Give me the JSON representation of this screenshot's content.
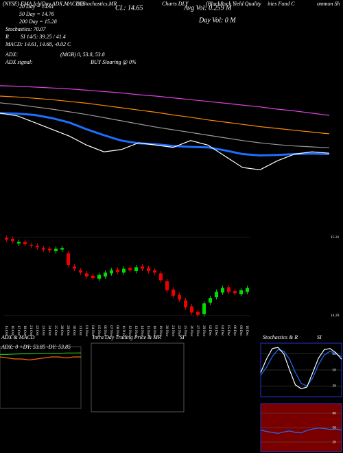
{
  "chart_data": [
    {
      "type": "line",
      "annotations": [
        "(NYSE) EMA,IchiDay,ADX,MACD,B",
        "SI,Stochastics,MR",
        "CL: 14.65",
        "Charts DLY",
        "(BlackRock Yield Quality",
        "Avg Vol: 0.259 M",
        "Day Vol: 0   M",
        "ities Fund C",
        "ommon Sh",
        "20 Day = 14.61",
        "50 Day = 14.76",
        "200 Day = 15.28",
        "Stochastics: 70.07",
        "R",
        "SI 14/5: 39.25 / 41.4",
        "MACD: 14.61, 14.68, -0.02  C",
        "ADX:",
        "(MGB) 0, 53.8, 53.8",
        "ADX signal:",
        "BUY Sloaring @ 0%"
      ],
      "categories": [
        null,
        null,
        null,
        null,
        null,
        null,
        null,
        null,
        null,
        null,
        null,
        null,
        null,
        null,
        null,
        null,
        null,
        null,
        null,
        null
      ],
      "ylim": [
        13.9,
        16.8
      ],
      "series": [
        {
          "color": "#e040e0",
          "values": [
            16.42,
            16.41,
            16.39,
            16.37,
            16.35,
            16.32,
            16.29,
            16.26,
            16.22,
            16.19,
            16.15,
            16.11,
            16.07,
            16.03,
            15.99,
            15.95,
            15.9,
            15.86,
            15.81,
            15.76
          ]
        },
        {
          "color": "#ff8c00",
          "values": [
            16.19,
            16.17,
            16.14,
            16.11,
            16.07,
            16.03,
            15.98,
            15.93,
            15.88,
            15.83,
            15.77,
            15.72,
            15.66,
            15.61,
            15.56,
            15.51,
            15.47,
            15.43,
            15.39,
            15.35
          ]
        },
        {
          "color": "#9a9a9a",
          "values": [
            16.04,
            16.0,
            15.95,
            15.9,
            15.84,
            15.78,
            15.71,
            15.64,
            15.57,
            15.5,
            15.44,
            15.38,
            15.32,
            15.26,
            15.2,
            15.15,
            15.11,
            15.08,
            15.06,
            15.04
          ]
        },
        {
          "color": "#1e6fff",
          "values": [
            15.81,
            15.8,
            15.77,
            15.7,
            15.6,
            15.45,
            15.32,
            15.2,
            15.14,
            15.12,
            15.08,
            15.06,
            15.05,
            14.98,
            14.9,
            14.87,
            14.88,
            14.9,
            14.91,
            14.9
          ]
        },
        {
          "color": "#ffffff",
          "values": [
            15.81,
            15.75,
            15.6,
            15.45,
            15.3,
            15.1,
            14.95,
            15.0,
            15.15,
            15.1,
            15.05,
            15.2,
            15.1,
            14.85,
            14.6,
            14.55,
            14.75,
            14.9,
            14.95,
            14.92
          ]
        }
      ]
    },
    {
      "type": "candlestick",
      "categories": [
        "15 Oct",
        "16 Oct",
        "17 Oct",
        "18 Oct",
        "21 Oct",
        "22 Oct",
        "23 Oct",
        "24 Oct",
        "25 Oct",
        "28 Oct",
        "29 Oct",
        "30 Oct",
        "31 Oct",
        "01 Nov",
        "04 Nov",
        "05 Nov",
        "06 Nov",
        "07 Nov",
        "08 Nov",
        "11 Nov",
        "12 Nov",
        "13 Nov",
        "14 Nov",
        "15 Nov",
        "18 Nov",
        "19 Nov",
        "20 Nov",
        "21 Nov",
        "22 Nov",
        "25 Nov",
        "26 Nov",
        "27 Nov",
        "29 Nov",
        "02 Dec",
        "03 Dec",
        "04 Dec",
        "05 Dec",
        "06 Dec",
        "09 Dec",
        "10 Dec"
      ],
      "open": [
        15.3,
        15.29,
        15.23,
        15.25,
        15.21,
        15.2,
        15.17,
        15.16,
        15.13,
        15.15,
        15.1,
        14.93,
        14.88,
        14.84,
        14.81,
        14.77,
        14.8,
        14.84,
        14.89,
        14.85,
        14.91,
        14.87,
        14.93,
        14.91,
        14.88,
        14.84,
        14.74,
        14.63,
        14.56,
        14.49,
        14.41,
        14.34,
        14.31,
        14.46,
        14.53,
        14.59,
        14.66,
        14.61,
        14.57,
        14.6
      ],
      "high": [
        15.33,
        15.32,
        15.28,
        15.28,
        15.24,
        15.23,
        15.2,
        15.19,
        15.19,
        15.2,
        15.13,
        14.96,
        14.91,
        14.87,
        14.84,
        14.85,
        14.88,
        14.91,
        14.92,
        14.93,
        14.94,
        14.95,
        14.96,
        14.94,
        14.91,
        14.87,
        14.77,
        14.66,
        14.59,
        14.52,
        14.44,
        14.37,
        14.48,
        14.55,
        14.63,
        14.68,
        14.69,
        14.64,
        14.65,
        14.68
      ],
      "low": [
        15.25,
        15.23,
        15.2,
        15.19,
        15.17,
        15.15,
        15.12,
        15.11,
        15.1,
        15.12,
        14.92,
        14.87,
        14.82,
        14.77,
        14.75,
        14.74,
        14.77,
        14.81,
        14.83,
        14.82,
        14.85,
        14.84,
        14.87,
        14.84,
        14.82,
        14.72,
        14.59,
        14.52,
        14.47,
        14.37,
        14.3,
        14.27,
        14.28,
        14.43,
        14.5,
        14.56,
        14.57,
        14.55,
        14.54,
        14.57
      ],
      "close": [
        15.28,
        15.26,
        15.25,
        15.22,
        15.2,
        15.18,
        15.15,
        15.14,
        15.16,
        15.17,
        14.95,
        14.9,
        14.85,
        14.8,
        14.78,
        14.82,
        14.85,
        14.88,
        14.86,
        14.9,
        14.88,
        14.92,
        14.9,
        14.87,
        14.85,
        14.75,
        14.62,
        14.55,
        14.5,
        14.4,
        14.33,
        14.3,
        14.45,
        14.52,
        14.6,
        14.65,
        14.6,
        14.58,
        14.62,
        14.65
      ],
      "up_color": "#00dd00",
      "down_color": "#ee0000",
      "ylim": [
        14.2,
        15.45
      ],
      "yticks": [
        14.29,
        15.31
      ]
    },
    {
      "type": "line",
      "title": "ADX & MACD",
      "subtitle": "ADX: 0  +DY: 53.85  -DY: 53.85",
      "categories": [
        null,
        null,
        null,
        null,
        null,
        null,
        null,
        null,
        null,
        null,
        null,
        null
      ],
      "ylim": [
        0,
        60
      ],
      "series": [
        {
          "color": "#22cc22",
          "values": [
            52.5,
            52.5,
            52.8,
            53.0,
            53.0,
            53.2,
            53.2,
            53.5,
            53.5,
            53.8,
            53.8,
            53.85
          ]
        },
        {
          "color": "#ff6600",
          "values": [
            50,
            49,
            48,
            48,
            47,
            48,
            49,
            50,
            50,
            49,
            50,
            50
          ]
        }
      ]
    },
    {
      "type": "line",
      "title": "Intra Day Trading Price & MR",
      "subtitle": "SI"
    },
    {
      "type": "line",
      "title": "Stochastics & R",
      "subtitle": "SI",
      "categories": [
        null,
        null,
        null,
        null,
        null,
        null,
        null,
        null,
        null,
        null,
        null,
        null,
        null,
        null,
        null
      ],
      "ylim": [
        0,
        100
      ],
      "yticks": [
        20,
        50,
        80
      ],
      "series": [
        {
          "color": "#1e6fff",
          "values": [
            40,
            55,
            75,
            88,
            85,
            70,
            45,
            25,
            20,
            35,
            60,
            78,
            85,
            80,
            75
          ]
        },
        {
          "color": "#ffffff",
          "values": [
            45,
            70,
            90,
            92,
            80,
            50,
            22,
            15,
            18,
            45,
            72,
            88,
            90,
            82,
            70
          ]
        }
      ]
    },
    {
      "type": "line",
      "categories": [
        null,
        null,
        null,
        null,
        null,
        null,
        null,
        null,
        null,
        null,
        null,
        null,
        null,
        null,
        null
      ],
      "ylim": [
        0,
        100
      ],
      "yticks": [
        20,
        50,
        80
      ],
      "series": [
        {
          "color": "#1e6fff",
          "values": [
            45,
            42,
            40,
            38,
            41,
            43,
            40,
            39,
            44,
            47,
            49,
            48,
            46,
            47,
            45
          ]
        }
      ]
    }
  ]
}
